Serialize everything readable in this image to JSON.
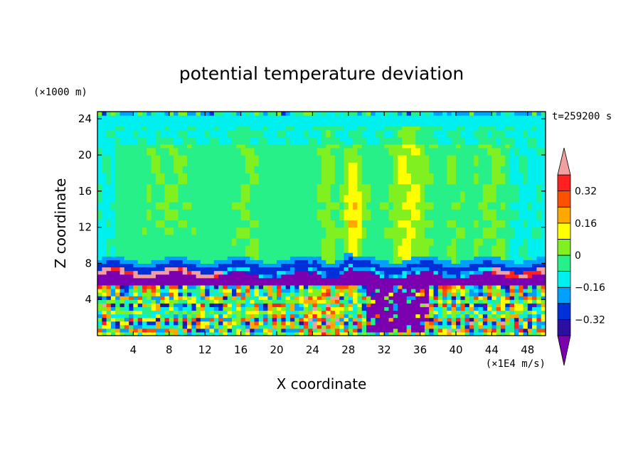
{
  "chart_data": {
    "type": "heatmap",
    "title": "potential temperature deviation",
    "xlabel": "X coordinate",
    "ylabel": "Z coordinate",
    "x_units": "(×1E4 m/s)",
    "y_units": "(×1000 m)",
    "time_label": "t=259200 s",
    "xlim": [
      0,
      50
    ],
    "ylim": [
      0,
      24.8
    ],
    "x_ticks": [
      "4",
      "8",
      "12",
      "16",
      "20",
      "24",
      "28",
      "32",
      "36",
      "40",
      "44",
      "48"
    ],
    "y_ticks": [
      "4",
      "8",
      "12",
      "16",
      "20",
      "24"
    ],
    "colorbar": {
      "levels": [
        -0.4,
        -0.32,
        -0.24,
        -0.16,
        -0.08,
        0,
        0.08,
        0.16,
        0.24,
        0.32,
        0.4
      ],
      "labels": [
        "0.32",
        "0.16",
        "0",
        "-0.16",
        "-0.32"
      ],
      "label_values": [
        0.32,
        0.16,
        0,
        -0.16,
        -0.32
      ],
      "colors": [
        "#7b00b0",
        "#2a0fa0",
        "#0030d8",
        "#00a0ff",
        "#00f0f0",
        "#28f088",
        "#80f020",
        "#ffff00",
        "#ffa800",
        "#ff5000",
        "#ff2020",
        "#f0a0a0"
      ],
      "extend": "both"
    },
    "grid": false,
    "regions": [
      {
        "name": "upper layer",
        "z_range": [
          8.5,
          24.5
        ],
        "value": -0.05
      },
      {
        "name": "top boundary",
        "z_range": [
          23.5,
          24.8
        ],
        "value": -0.12
      },
      {
        "name": "warm plume",
        "x_center": 28.5,
        "z_range": [
          9,
          21
        ],
        "value": 0.22
      },
      {
        "name": "warm column",
        "x_center": 35,
        "z_range": [
          9,
          24
        ],
        "value": 0.13
      },
      {
        "name": "inversion layer",
        "z_range": [
          5.5,
          8.5
        ],
        "value": -0.38
      },
      {
        "name": "lower turbulent layer",
        "z_range": [
          0,
          5.5
        ],
        "value": 0.0
      }
    ]
  }
}
